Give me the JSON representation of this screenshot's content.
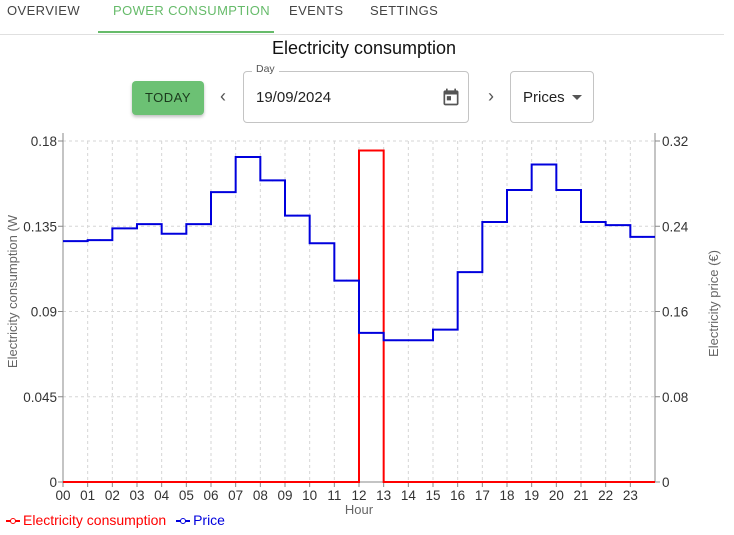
{
  "tabs": [
    {
      "label": "OVERVIEW",
      "active": false
    },
    {
      "label": "POWER CONSUMPTION",
      "active": true
    },
    {
      "label": "EVENTS",
      "active": false
    },
    {
      "label": "SETTINGS",
      "active": false
    }
  ],
  "title": "Electricity consumption",
  "toolbar": {
    "today_label": "TODAY",
    "prev_icon": "chevron-left-icon",
    "next_icon": "chevron-right-icon",
    "date_label": "Day",
    "date_value": "19/09/2024",
    "calendar_icon": "calendar-icon",
    "mode_value": "Prices"
  },
  "colors": {
    "accent": "#66bb6a",
    "consumption": "#ff0000",
    "price": "#0000dd"
  },
  "chart_data": {
    "type": "line",
    "step": true,
    "categories": [
      "00",
      "01",
      "02",
      "03",
      "04",
      "05",
      "06",
      "07",
      "08",
      "09",
      "10",
      "11",
      "12",
      "13",
      "14",
      "15",
      "16",
      "17",
      "18",
      "19",
      "20",
      "21",
      "22",
      "23"
    ],
    "xlabel": "Hour",
    "ylabel_left": "Electricity consumption (W",
    "ylabel_right": "Electricity price (€)",
    "ylim_left": [
      0,
      0.18
    ],
    "ylim_right": [
      0,
      0.32
    ],
    "yticks_left": [
      "0",
      "0.045",
      "0.09",
      "0.135",
      "0.18"
    ],
    "yticks_right": [
      "0",
      "0.08",
      "0.16",
      "0.24",
      "0.32"
    ],
    "grid": true,
    "legend_position": "bottom-left",
    "series": [
      {
        "name": "Electricity consumption",
        "axis": "left",
        "color": "#ff0000",
        "values": [
          0,
          0,
          0,
          0,
          0,
          0,
          0,
          0,
          0,
          0,
          0,
          0,
          0.175,
          0,
          0,
          0,
          0,
          0,
          0,
          0,
          0,
          0,
          0,
          0
        ]
      },
      {
        "name": "Price",
        "axis": "right",
        "color": "#0000dd",
        "values": [
          0.226,
          0.227,
          0.238,
          0.242,
          0.233,
          0.242,
          0.272,
          0.305,
          0.283,
          0.25,
          0.224,
          0.189,
          0.14,
          0.133,
          0.133,
          0.143,
          0.197,
          0.244,
          0.274,
          0.298,
          0.274,
          0.244,
          0.241,
          0.23
        ]
      }
    ]
  }
}
